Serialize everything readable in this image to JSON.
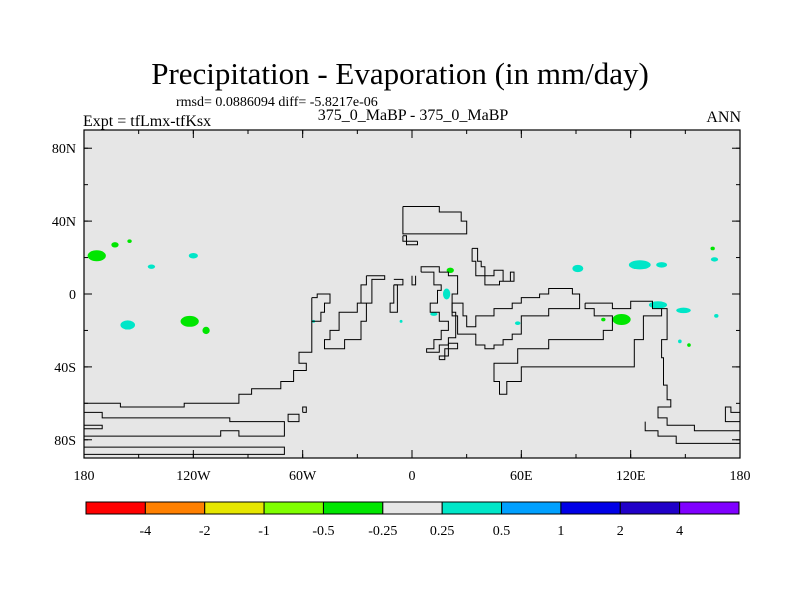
{
  "chart_data": {
    "type": "heatmap",
    "title": "Precipitation - Evaporation (in mm/day)",
    "stats_text": "rmsd= 0.0886094 diff= -5.8217e-06",
    "left_label": "Expt = tfLmx-tfKsx",
    "center_label": "375_0_MaBP - 375_0_MaBP",
    "right_label": "ANN",
    "xlim": [
      -180,
      180
    ],
    "ylim": [
      -90,
      90
    ],
    "x_ticks": [
      {
        "value": -180,
        "label": "180"
      },
      {
        "value": -120,
        "label": "120W"
      },
      {
        "value": -60,
        "label": "60W"
      },
      {
        "value": 0,
        "label": "0"
      },
      {
        "value": 60,
        "label": "60E"
      },
      {
        "value": 120,
        "label": "120E"
      },
      {
        "value": 180,
        "label": "180"
      }
    ],
    "y_ticks": [
      {
        "value": 80,
        "label": "80N"
      },
      {
        "value": 40,
        "label": "40N"
      },
      {
        "value": 0,
        "label": "0"
      },
      {
        "value": -40,
        "label": "40S"
      },
      {
        "value": -80,
        "label": "80S"
      }
    ],
    "background_color": "#e6e6e6",
    "colorbar": {
      "colors": [
        "#ff0000",
        "#ff8000",
        "#e6e600",
        "#80ff00",
        "#00e600",
        "#e6e6e6",
        "#00e6c8",
        "#00a0ff",
        "#0000e6",
        "#2000c8",
        "#8000ff"
      ],
      "labels": [
        "-4",
        "-2",
        "-1",
        "-0.5",
        "-0.25",
        "0.25",
        "0.5",
        "1",
        "2",
        "4"
      ]
    },
    "anomalies": [
      {
        "lon": -173,
        "lat": 21,
        "rlon": 5,
        "rlat": 3,
        "value": -0.3
      },
      {
        "lon": -163,
        "lat": 27,
        "rlon": 2,
        "rlat": 1.5,
        "value": -0.3
      },
      {
        "lon": -155,
        "lat": 29,
        "rlon": 1.2,
        "rlat": 1,
        "value": -0.3
      },
      {
        "lon": -143,
        "lat": 15,
        "rlon": 2,
        "rlat": 1.2,
        "value": 0.3
      },
      {
        "lon": -120,
        "lat": 21,
        "rlon": 2.5,
        "rlat": 1.5,
        "value": 0.3
      },
      {
        "lon": -156,
        "lat": -17,
        "rlon": 4,
        "rlat": 2.5,
        "value": 0.3
      },
      {
        "lon": -122,
        "lat": -15,
        "rlon": 5,
        "rlat": 3,
        "value": -0.3
      },
      {
        "lon": -113,
        "lat": -20,
        "rlon": 2,
        "rlat": 2,
        "value": -0.3
      },
      {
        "lon": 21,
        "lat": 13,
        "rlon": 2,
        "rlat": 1.5,
        "value": -0.3
      },
      {
        "lon": 19,
        "lat": 0,
        "rlon": 2,
        "rlat": 3,
        "value": 0.3
      },
      {
        "lon": 12,
        "lat": -11,
        "rlon": 2,
        "rlat": 1,
        "value": 0.3
      },
      {
        "lon": 58,
        "lat": -16,
        "rlon": 1.5,
        "rlat": 1,
        "value": 0.3
      },
      {
        "lon": 91,
        "lat": 14,
        "rlon": 3,
        "rlat": 2,
        "value": 0.3
      },
      {
        "lon": 125,
        "lat": 16,
        "rlon": 6,
        "rlat": 2.5,
        "value": 0.3
      },
      {
        "lon": 137,
        "lat": 16,
        "rlon": 3,
        "rlat": 1.5,
        "value": 0.3
      },
      {
        "lon": 135,
        "lat": -6,
        "rlon": 5,
        "rlat": 2,
        "value": 0.3
      },
      {
        "lon": 149,
        "lat": -9,
        "rlon": 4,
        "rlat": 1.5,
        "value": 0.3
      },
      {
        "lon": 115,
        "lat": -14,
        "rlon": 5,
        "rlat": 3,
        "value": -0.3
      },
      {
        "lon": 105,
        "lat": -14,
        "rlon": 1.2,
        "rlat": 1,
        "value": -0.3
      },
      {
        "lon": 165,
        "lat": 25,
        "rlon": 1.2,
        "rlat": 1,
        "value": -0.3
      },
      {
        "lon": 166,
        "lat": 19,
        "rlon": 2,
        "rlat": 1.2,
        "value": 0.3
      },
      {
        "lon": 152,
        "lat": -28,
        "rlon": 1,
        "rlat": 1,
        "value": -0.3
      },
      {
        "lon": 147,
        "lat": -26,
        "rlon": 1,
        "rlat": 1,
        "value": 0.3
      },
      {
        "lon": 167,
        "lat": -12,
        "rlon": 1.2,
        "rlat": 1,
        "value": 0.3
      },
      {
        "lon": -54,
        "lat": -15,
        "rlon": 0.8,
        "rlat": 0.8,
        "value": 0.3
      },
      {
        "lon": -6,
        "lat": -15,
        "rlon": 0.8,
        "rlat": 0.8,
        "value": 0.3
      }
    ],
    "coastlines": [
      [
        [
          -5,
          48
        ],
        [
          15,
          48
        ],
        [
          15,
          45
        ],
        [
          27,
          45
        ],
        [
          27,
          40
        ],
        [
          30,
          40
        ],
        [
          30,
          33
        ],
        [
          -5,
          33
        ],
        [
          -5,
          48
        ]
      ],
      [
        [
          -5,
          32
        ],
        [
          -3,
          32
        ],
        [
          -3,
          29
        ],
        [
          -5,
          29
        ],
        [
          -5,
          32
        ]
      ],
      [
        [
          3,
          29
        ],
        [
          3,
          27
        ],
        [
          -3,
          27
        ],
        [
          -3,
          29
        ],
        [
          3,
          29
        ]
      ],
      [
        [
          -25,
          10
        ],
        [
          -25,
          5
        ],
        [
          -28,
          5
        ],
        [
          -28,
          -5
        ],
        [
          -25,
          -5
        ],
        [
          -25,
          -15
        ],
        [
          -28,
          -15
        ],
        [
          -28,
          -25
        ],
        [
          -37,
          -25
        ],
        [
          -37,
          -30
        ],
        [
          -48,
          -30
        ],
        [
          -48,
          -25
        ],
        [
          -45,
          -25
        ],
        [
          -45,
          -20
        ],
        [
          -40,
          -20
        ],
        [
          -40,
          -10
        ],
        [
          -30,
          -10
        ],
        [
          -30,
          -5
        ],
        [
          -22,
          -5
        ],
        [
          -22,
          8
        ],
        [
          -15,
          8
        ],
        [
          -15,
          10
        ],
        [
          -25,
          10
        ]
      ],
      [
        [
          -10,
          5
        ],
        [
          -10,
          -5
        ],
        [
          -12,
          -5
        ],
        [
          -12,
          -10
        ],
        [
          -8,
          -10
        ],
        [
          -8,
          5
        ],
        [
          -10,
          5
        ]
      ],
      [
        [
          -10,
          8
        ],
        [
          -5,
          8
        ],
        [
          -5,
          5
        ],
        [
          -10,
          5
        ]
      ],
      [
        [
          0,
          10
        ],
        [
          0,
          5
        ],
        [
          2,
          5
        ],
        [
          2,
          10
        ]
      ],
      [
        [
          5,
          12
        ],
        [
          12,
          12
        ],
        [
          12,
          5
        ],
        [
          16,
          5
        ],
        [
          16,
          2
        ],
        [
          14,
          2
        ],
        [
          14,
          -5
        ],
        [
          10,
          -5
        ],
        [
          10,
          -10
        ],
        [
          15,
          -10
        ],
        [
          15,
          -15
        ],
        [
          20,
          -15
        ],
        [
          20,
          -20
        ],
        [
          16,
          -20
        ],
        [
          16,
          -25
        ],
        [
          12,
          -25
        ],
        [
          12,
          -30
        ],
        [
          8,
          -30
        ],
        [
          8,
          -32
        ],
        [
          15,
          -32
        ],
        [
          15,
          -28
        ],
        [
          20,
          -28
        ],
        [
          20,
          -24
        ],
        [
          24,
          -24
        ],
        [
          24,
          -10
        ],
        [
          22,
          -10
        ],
        [
          22,
          0
        ],
        [
          25,
          0
        ],
        [
          25,
          10
        ],
        [
          20,
          10
        ],
        [
          20,
          12
        ],
        [
          15,
          12
        ],
        [
          15,
          15
        ],
        [
          5,
          15
        ],
        [
          5,
          12
        ]
      ],
      [
        [
          15,
          -36
        ],
        [
          18,
          -36
        ],
        [
          18,
          -30
        ],
        [
          25,
          -30
        ],
        [
          25,
          -27
        ],
        [
          20,
          -27
        ],
        [
          20,
          -34
        ],
        [
          15,
          -34
        ],
        [
          15,
          -36
        ]
      ],
      [
        [
          33,
          25
        ],
        [
          36,
          25
        ],
        [
          36,
          18
        ],
        [
          38,
          18
        ],
        [
          38,
          15
        ],
        [
          40,
          15
        ],
        [
          40,
          10
        ],
        [
          45,
          10
        ],
        [
          45,
          13
        ],
        [
          50,
          13
        ],
        [
          50,
          7
        ],
        [
          54,
          7
        ],
        [
          54,
          12
        ],
        [
          56,
          12
        ],
        [
          56,
          7
        ],
        [
          48,
          7
        ],
        [
          48,
          5
        ],
        [
          40,
          5
        ],
        [
          40,
          10
        ],
        [
          35,
          10
        ],
        [
          35,
          18
        ],
        [
          33,
          18
        ],
        [
          33,
          25
        ]
      ],
      [
        [
          53,
          -25
        ],
        [
          50,
          -25
        ],
        [
          50,
          -28
        ],
        [
          45,
          -28
        ],
        [
          45,
          -30
        ],
        [
          40,
          -30
        ],
        [
          40,
          -28
        ],
        [
          35,
          -28
        ],
        [
          35,
          -22
        ],
        [
          25,
          -22
        ],
        [
          25,
          -12
        ],
        [
          22,
          -12
        ],
        [
          22,
          -5
        ],
        [
          28,
          -5
        ],
        [
          28,
          -12
        ],
        [
          30,
          -12
        ],
        [
          30,
          -18
        ],
        [
          35,
          -18
        ],
        [
          35,
          -12
        ],
        [
          45,
          -12
        ],
        [
          45,
          -8
        ],
        [
          55,
          -8
        ],
        [
          55,
          -5
        ],
        [
          60,
          -5
        ],
        [
          60,
          -2
        ],
        [
          70,
          -2
        ],
        [
          70,
          0
        ],
        [
          75,
          0
        ],
        [
          75,
          3
        ],
        [
          88,
          3
        ],
        [
          88,
          0
        ],
        [
          92,
          0
        ],
        [
          92,
          -8
        ],
        [
          75,
          -8
        ],
        [
          75,
          -12
        ],
        [
          60,
          -12
        ],
        [
          60,
          -22
        ],
        [
          55,
          -22
        ],
        [
          55,
          -25
        ],
        [
          53,
          -25
        ]
      ],
      [
        [
          -55,
          -2
        ],
        [
          -55,
          -15
        ],
        [
          -50,
          -15
        ],
        [
          -50,
          -10
        ],
        [
          -48,
          -10
        ],
        [
          -48,
          -5
        ],
        [
          -45,
          -5
        ],
        [
          -45,
          0
        ],
        [
          -52,
          0
        ],
        [
          -52,
          -2
        ],
        [
          -55,
          -2
        ]
      ],
      [
        [
          -55,
          -15
        ],
        [
          -55,
          -32
        ],
        [
          -62,
          -32
        ],
        [
          -62,
          -38
        ],
        [
          -58,
          -38
        ],
        [
          -58,
          -42
        ],
        [
          -65,
          -42
        ],
        [
          -65,
          -48
        ],
        [
          -72,
          -48
        ],
        [
          -72,
          -52
        ],
        [
          -88,
          -52
        ],
        [
          -88,
          -55
        ],
        [
          -95,
          -55
        ],
        [
          -95,
          -60
        ],
        [
          -125,
          -60
        ],
        [
          -125,
          -62
        ],
        [
          -160,
          -62
        ],
        [
          -160,
          -60
        ],
        [
          -180,
          -60
        ]
      ],
      [
        [
          -180,
          -65
        ],
        [
          -170,
          -65
        ],
        [
          -170,
          -68
        ],
        [
          -100,
          -68
        ],
        [
          -100,
          -70
        ],
        [
          -70,
          -70
        ],
        [
          -70,
          -78
        ],
        [
          -95,
          -78
        ],
        [
          -95,
          -75
        ],
        [
          -105,
          -75
        ],
        [
          -105,
          -78
        ],
        [
          -180,
          -78
        ]
      ],
      [
        [
          -180,
          -84
        ],
        [
          -70,
          -84
        ],
        [
          -70,
          -88
        ],
        [
          -180,
          -88
        ]
      ],
      [
        [
          -68,
          -70
        ],
        [
          -62,
          -70
        ],
        [
          -62,
          -66
        ],
        [
          -68,
          -66
        ],
        [
          -68,
          -70
        ]
      ],
      [
        [
          -60,
          -65
        ],
        [
          -58,
          -65
        ],
        [
          -58,
          -62
        ],
        [
          -60,
          -62
        ],
        [
          -60,
          -65
        ]
      ],
      [
        [
          95,
          -5
        ],
        [
          110,
          -5
        ],
        [
          110,
          -8
        ],
        [
          120,
          -8
        ],
        [
          120,
          -4
        ],
        [
          132,
          -4
        ],
        [
          132,
          -8
        ],
        [
          137,
          -8
        ],
        [
          137,
          -12
        ],
        [
          127,
          -12
        ],
        [
          127,
          -25
        ],
        [
          122,
          -25
        ],
        [
          122,
          -40
        ],
        [
          60,
          -40
        ],
        [
          60,
          -48
        ],
        [
          52,
          -48
        ],
        [
          52,
          -55
        ],
        [
          48,
          -55
        ],
        [
          48,
          -48
        ],
        [
          45,
          -48
        ],
        [
          45,
          -38
        ],
        [
          58,
          -38
        ],
        [
          58,
          -30
        ],
        [
          75,
          -30
        ],
        [
          75,
          -25
        ],
        [
          105,
          -25
        ],
        [
          105,
          -20
        ],
        [
          110,
          -20
        ],
        [
          110,
          -12
        ],
        [
          100,
          -12
        ],
        [
          100,
          -8
        ],
        [
          95,
          -8
        ],
        [
          95,
          -5
        ]
      ],
      [
        [
          137,
          -8
        ],
        [
          140,
          -8
        ],
        [
          140,
          -25
        ],
        [
          137,
          -25
        ],
        [
          137,
          -35
        ],
        [
          138,
          -35
        ],
        [
          138,
          -50
        ],
        [
          140,
          -50
        ],
        [
          140,
          -58
        ],
        [
          142,
          -58
        ],
        [
          142,
          -62
        ],
        [
          135,
          -62
        ],
        [
          135,
          -68
        ],
        [
          140,
          -68
        ],
        [
          140,
          -72
        ],
        [
          155,
          -72
        ],
        [
          155,
          -75
        ],
        [
          180,
          -75
        ]
      ],
      [
        [
          180,
          -65
        ],
        [
          175,
          -65
        ],
        [
          175,
          -62
        ],
        [
          172,
          -62
        ],
        [
          172,
          -70
        ],
        [
          180,
          -70
        ]
      ],
      [
        [
          180,
          -82
        ],
        [
          145,
          -82
        ],
        [
          145,
          -78
        ],
        [
          135,
          -78
        ],
        [
          135,
          -75
        ],
        [
          128,
          -75
        ],
        [
          128,
          -70
        ]
      ],
      [
        [
          -180,
          -72
        ],
        [
          -170,
          -72
        ],
        [
          -170,
          -74
        ],
        [
          -180,
          -74
        ]
      ]
    ]
  }
}
